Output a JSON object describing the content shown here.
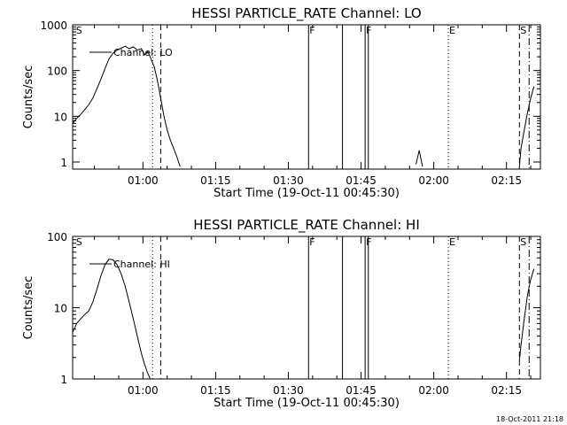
{
  "footer": "18-Oct-2011 21:18",
  "chart_data": [
    {
      "type": "line",
      "title": "HESSI PARTICLE_RATE Channel: LO",
      "xlabel": "Start Time (19-Oct-11 00:45:30)",
      "ylabel": "Counts/sec",
      "ylog": true,
      "xlim": [
        "00:45:30",
        "02:22:00"
      ],
      "ylim": [
        0.7,
        1000
      ],
      "xticks": [
        "01:00",
        "01:15",
        "01:30",
        "01:45",
        "02:00",
        "02:15"
      ],
      "yticks": [
        "1",
        "10",
        "100",
        "1000"
      ],
      "legend": "Channel: LO",
      "legend_position": "top-left",
      "markers": [
        {
          "label": "S",
          "time": "00:46:00",
          "style": "none"
        },
        {
          "label": "",
          "time": "01:02:00",
          "style": "dotted"
        },
        {
          "label": "",
          "time": "01:03:40",
          "style": "dashed"
        },
        {
          "label": "F",
          "time": "01:34:10",
          "style": "solid"
        },
        {
          "label": "",
          "time": "01:41:10",
          "style": "solid"
        },
        {
          "label": "F",
          "time": "01:45:50",
          "style": "solid"
        },
        {
          "label": "",
          "time": "01:46:30",
          "style": "solid"
        },
        {
          "label": "E",
          "time": "02:03:00",
          "style": "dotted"
        },
        {
          "label": "S",
          "time": "02:17:40",
          "style": "dashed"
        },
        {
          "label": "",
          "time": "02:19:40",
          "style": "dashdot"
        }
      ],
      "series": [
        {
          "name": "Channel: LO",
          "segments": [
            {
              "x": [
                "00:45:30",
                "00:46:20",
                "00:47:10",
                "00:48:00",
                "00:48:50",
                "00:49:40",
                "00:50:30",
                "00:51:20",
                "00:52:10",
                "00:53:00",
                "00:53:50",
                "00:54:40",
                "00:55:30",
                "00:56:20",
                "00:57:10",
                "00:58:00",
                "00:58:50",
                "00:59:40",
                "01:00:20",
                "01:01:00",
                "01:01:40",
                "01:02:20",
                "01:03:00",
                "01:03:40",
                "01:04:20",
                "01:05:00",
                "01:05:40",
                "01:06:20",
                "01:07:00",
                "01:07:40"
              ],
              "y": [
                7,
                9,
                11,
                14,
                18,
                25,
                40,
                65,
                110,
                180,
                240,
                280,
                310,
                340,
                300,
                330,
                280,
                300,
                220,
                260,
                180,
                120,
                60,
                25,
                10,
                5,
                3,
                2,
                1.3,
                0.8
              ]
            },
            {
              "x": [
                "01:56:20",
                "01:57:00",
                "01:57:40"
              ],
              "y": [
                0.9,
                1.8,
                0.8
              ]
            },
            {
              "x": [
                "02:17:40",
                "02:18:00",
                "02:18:40",
                "02:19:20",
                "02:20:00",
                "02:20:40"
              ],
              "y": [
                0.8,
                2,
                5,
                12,
                25,
                45
              ]
            }
          ]
        }
      ]
    },
    {
      "type": "line",
      "title": "HESSI PARTICLE_RATE Channel: HI",
      "xlabel": "Start Time (19-Oct-11 00:45:30)",
      "ylabel": "Counts/sec",
      "ylog": true,
      "xlim": [
        "00:45:30",
        "02:22:00"
      ],
      "ylim": [
        1,
        100
      ],
      "xticks": [
        "01:00",
        "01:15",
        "01:30",
        "01:45",
        "02:00",
        "02:15"
      ],
      "yticks": [
        "1",
        "10",
        "100"
      ],
      "legend": "Channel: HI",
      "legend_position": "top-left",
      "markers": [
        {
          "label": "S",
          "time": "00:46:00",
          "style": "none"
        },
        {
          "label": "",
          "time": "01:02:00",
          "style": "dotted"
        },
        {
          "label": "",
          "time": "01:03:40",
          "style": "dashed"
        },
        {
          "label": "F",
          "time": "01:34:10",
          "style": "solid"
        },
        {
          "label": "",
          "time": "01:41:10",
          "style": "solid"
        },
        {
          "label": "F",
          "time": "01:45:50",
          "style": "solid"
        },
        {
          "label": "",
          "time": "01:46:30",
          "style": "solid"
        },
        {
          "label": "E",
          "time": "02:03:00",
          "style": "dotted"
        },
        {
          "label": "S",
          "time": "02:17:40",
          "style": "dashed"
        },
        {
          "label": "",
          "time": "02:19:40",
          "style": "dashdot"
        }
      ],
      "series": [
        {
          "name": "Channel: HI",
          "segments": [
            {
              "x": [
                "00:45:30",
                "00:46:20",
                "00:47:10",
                "00:48:00",
                "00:48:50",
                "00:49:40",
                "00:50:30",
                "00:51:20",
                "00:52:10",
                "00:53:00",
                "00:53:50",
                "00:54:40",
                "00:55:30",
                "00:56:20",
                "00:57:10",
                "00:58:00",
                "00:58:50",
                "00:59:40",
                "01:00:20",
                "01:01:00",
                "01:01:30"
              ],
              "y": [
                4.5,
                6,
                7,
                8,
                9,
                12,
                18,
                28,
                40,
                48,
                47,
                40,
                30,
                20,
                12,
                7,
                4,
                2.3,
                1.6,
                1.2,
                1.0
              ]
            },
            {
              "x": [
                "02:17:40",
                "02:18:00",
                "02:18:40",
                "02:19:20",
                "02:20:00",
                "02:20:40"
              ],
              "y": [
                1.8,
                3,
                7,
                15,
                25,
                35
              ]
            }
          ]
        }
      ]
    }
  ]
}
